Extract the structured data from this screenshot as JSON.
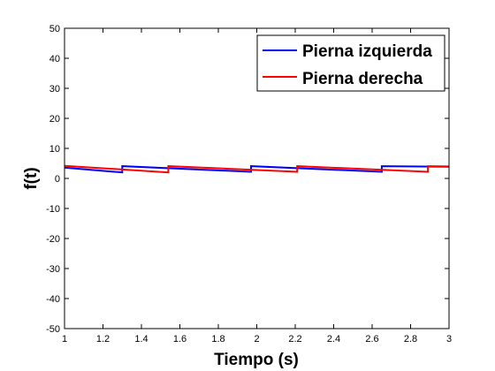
{
  "chart_data": {
    "type": "line",
    "xlabel": "Tiempo (s)",
    "ylabel": "f(t)",
    "xlim": [
      1,
      3
    ],
    "ylim": [
      -50,
      50
    ],
    "xticks": [
      "1",
      "1.2",
      "1.4",
      "1.6",
      "1.8",
      "2",
      "2.2",
      "2.4",
      "2.6",
      "2.8",
      "3"
    ],
    "yticks": [
      "-50",
      "-40",
      "-30",
      "-20",
      "-10",
      "0",
      "10",
      "20",
      "30",
      "40",
      "50"
    ],
    "grid": false,
    "legend_position": "top-right",
    "series": [
      {
        "name": "Pierna izquierda",
        "color": "#0000ff",
        "x": [
          1.0,
          1.3,
          1.3,
          1.97,
          1.97,
          2.65,
          2.65,
          3.0
        ],
        "y": [
          3.6,
          2.0,
          4.1,
          2.2,
          4.1,
          2.2,
          4.1,
          3.9
        ]
      },
      {
        "name": "Pierna derecha",
        "color": "#ff0000",
        "x": [
          1.0,
          1.54,
          1.54,
          2.21,
          2.21,
          2.89,
          2.89,
          3.0
        ],
        "y": [
          4.2,
          2.0,
          4.1,
          2.2,
          4.1,
          2.2,
          4.1,
          4.0
        ]
      }
    ]
  }
}
